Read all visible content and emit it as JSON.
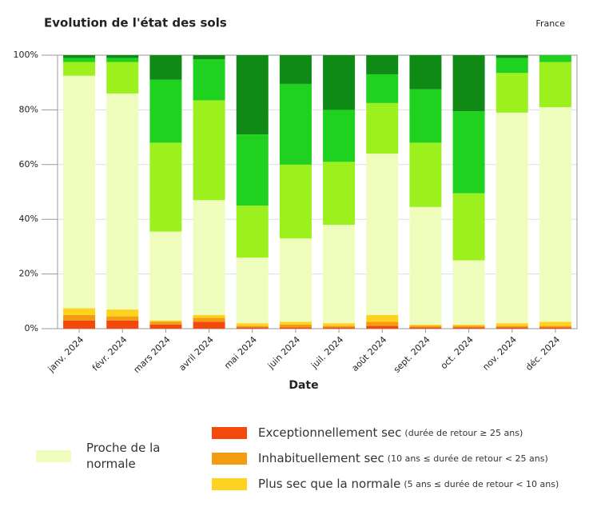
{
  "chart_data": {
    "type": "stacked_bar",
    "title": "Evolution de l'état des sols",
    "subtitle": "France",
    "x_label": "Date",
    "categories": [
      "janv. 2024",
      "févr. 2024",
      "mars 2024",
      "avril 2024",
      "mai 2024",
      "juin 2024",
      "juil. 2024",
      "août 2024",
      "sept. 2024",
      "oct. 2024",
      "nov. 2024",
      "déc. 2024"
    ],
    "ylim": [
      0,
      100
    ],
    "yticks": [
      {
        "value": 0,
        "label": "0%"
      },
      {
        "value": 20,
        "label": "20%"
      },
      {
        "value": 40,
        "label": "40%"
      },
      {
        "value": 60,
        "label": "60%"
      },
      {
        "value": 80,
        "label": "80%"
      },
      {
        "value": 100,
        "label": "100%"
      }
    ],
    "grid": true,
    "series": [
      {
        "name": "Exceptionnellement sec",
        "detail": "(durée de retour ≥ 25 ans)",
        "color": "#f5480c",
        "values": [
          3,
          3,
          1.5,
          2.5,
          0.5,
          0.5,
          0.5,
          1,
          0.5,
          0.5,
          0.5,
          0.5
        ]
      },
      {
        "name": "Inhabituellement sec",
        "detail": "(10 ans ≤ durée de retour < 25 ans)",
        "color": "#f39c12",
        "values": [
          2,
          1.5,
          1,
          1.5,
          0.5,
          1,
          0.5,
          1.5,
          0.5,
          0.5,
          0.5,
          0.5
        ]
      },
      {
        "name": "Plus sec que la normale",
        "detail": "(5 ans ≤ durée de retour < 10 ans)",
        "color": "#ffd21f",
        "values": [
          2.5,
          2.5,
          0.5,
          1,
          1,
          1,
          1,
          2.5,
          0.5,
          0.5,
          1,
          1.5
        ]
      },
      {
        "name": "Proche de la normale",
        "color": "#eefdbb",
        "values": [
          85,
          79,
          32.5,
          42,
          24,
          30.5,
          36,
          59,
          43,
          23.5,
          77,
          78.5
        ]
      },
      {
        "color": "#9cf01e",
        "values": [
          5,
          11.5,
          32.5,
          36.5,
          19,
          27,
          23,
          18.5,
          23.5,
          24.5,
          14.5,
          16.5
        ]
      },
      {
        "color": "#1fd21f",
        "values": [
          1.5,
          1.5,
          23,
          15,
          26,
          29.5,
          19,
          10.5,
          19.5,
          30,
          5.5,
          2.5
        ]
      },
      {
        "color": "#0f8a14",
        "values": [
          1,
          1,
          9,
          1.5,
          29,
          10.5,
          20,
          7,
          12.5,
          20.5,
          1,
          0
        ]
      }
    ]
  }
}
